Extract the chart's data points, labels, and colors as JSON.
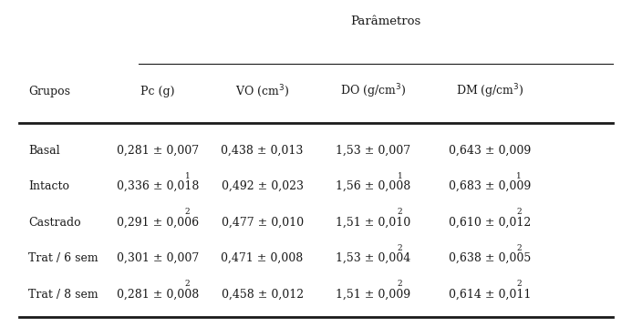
{
  "title": "Parâmetros",
  "col_headers": [
    "Grupos",
    "Pc (g)",
    "VO (cm$^3$)",
    "DO (g/cm$^3$)",
    "DM (g/cm$^3$)"
  ],
  "rows": [
    {
      "grupo": "Basal",
      "pc": "0,281 ± 0,007",
      "vo": "0,438 ± 0,013",
      "do_": "1,53 ± 0,007",
      "dm": "0,643 ± 0,009",
      "sups": [
        "",
        "",
        "",
        "",
        ""
      ]
    },
    {
      "grupo": "Intacto",
      "pc": "0,336 ± 0,018",
      "vo": "0,492 ± 0,023",
      "do_": "1,56 ± 0,008",
      "dm": "0,683 ± 0,009",
      "sups": [
        "",
        "1",
        "",
        "1",
        "1"
      ]
    },
    {
      "grupo": "Castrado",
      "pc": "0,291 ± 0,006",
      "vo": "0,477 ± 0,010",
      "do_": "1,51 ± 0,010",
      "dm": "0,610 ± 0,012",
      "sups": [
        "",
        "2",
        "",
        "2",
        "2"
      ]
    },
    {
      "grupo": "Trat / 6 sem",
      "pc": "0,301 ± 0,007",
      "vo": "0,471 ± 0,008",
      "do_": "1,53 ± 0,004",
      "dm": "0,638 ± 0,005",
      "sups": [
        "",
        "",
        "",
        "2",
        "2"
      ]
    },
    {
      "grupo": "Trat / 8 sem",
      "pc": "0,281 ± 0,008",
      "vo": "0,458 ± 0,012",
      "do_": "1,51 ± 0,009",
      "dm": "0,614 ± 0,011",
      "sups": [
        "",
        "2",
        "",
        "2",
        "2"
      ]
    }
  ],
  "bg_color": "#ffffff",
  "text_color": "#1a1a1a",
  "fontsize": 9.0,
  "sup_fontsize": 6.5,
  "title_fontsize": 9.5
}
